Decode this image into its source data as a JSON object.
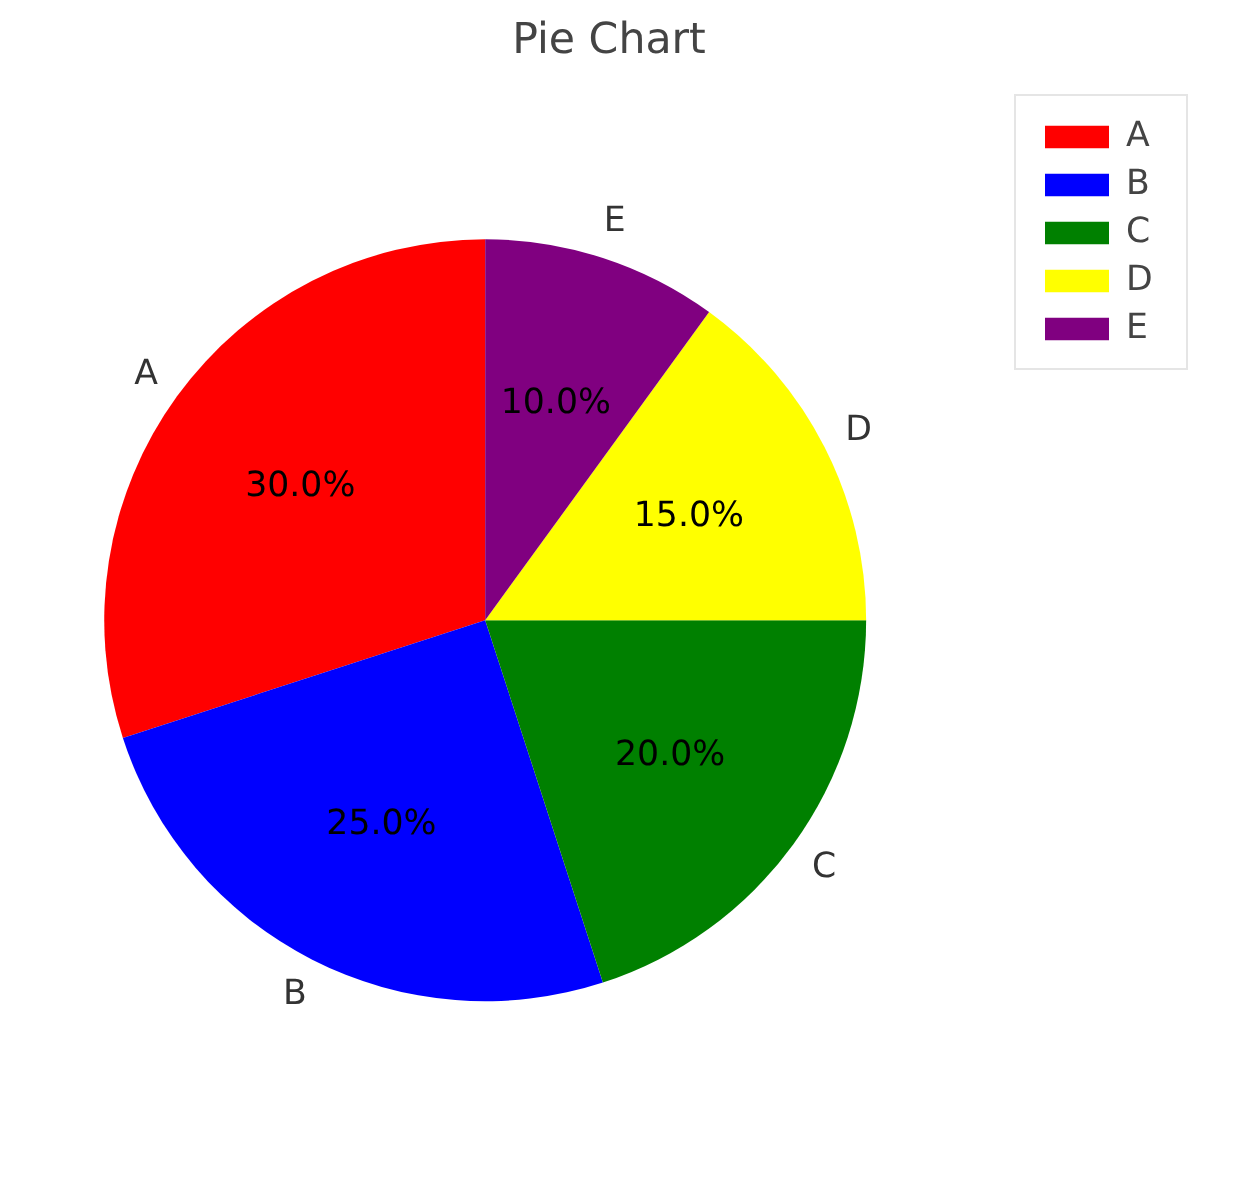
{
  "chart_data": {
    "type": "pie",
    "title": "Pie Chart",
    "categories": [
      "A",
      "B",
      "C",
      "D",
      "E"
    ],
    "values": [
      30,
      25,
      20,
      15,
      10
    ],
    "colors": [
      "#ff0000",
      "#0000ff",
      "#008000",
      "#ffff00",
      "#800080"
    ],
    "value_labels": [
      "30.0%",
      "25.0%",
      "20.0%",
      "15.0%",
      "10.0%"
    ],
    "legend": "top right"
  }
}
